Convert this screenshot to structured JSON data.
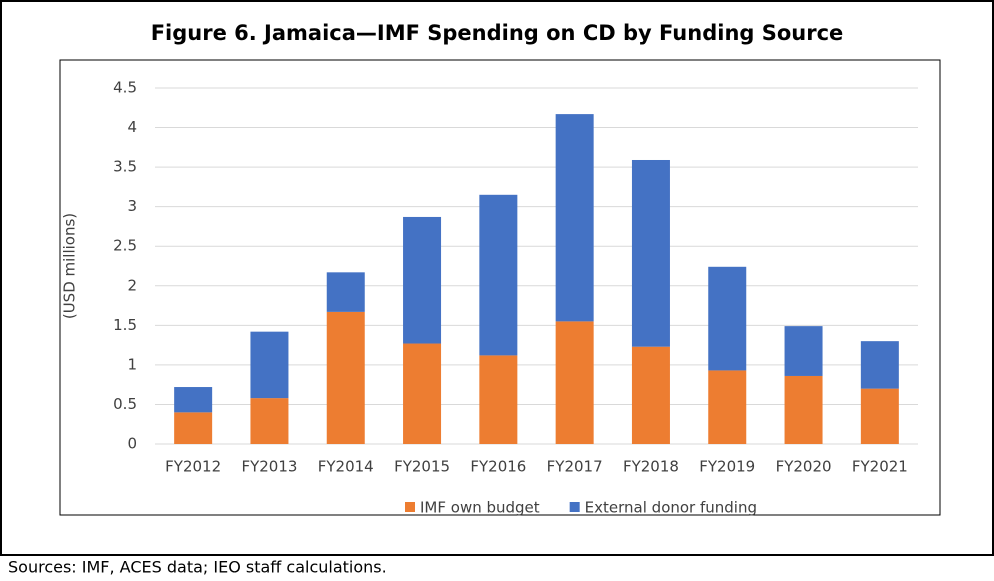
{
  "chart_data": {
    "type": "stacked_bar",
    "title": "Figure 6. Jamaica—IMF Spending on CD by Funding Source",
    "y_label": "(USD millions)",
    "categories": [
      "FY2012",
      "FY2013",
      "FY2014",
      "FY2015",
      "FY2016",
      "FY2017",
      "FY2018",
      "FY2019",
      "FY2020",
      "FY2021"
    ],
    "series": [
      {
        "name": "IMF own budget",
        "color": "#ed7d31",
        "values": [
          0.4,
          0.58,
          1.67,
          1.27,
          1.12,
          1.55,
          1.23,
          0.93,
          0.86,
          0.7
        ]
      },
      {
        "name": "External donor funding",
        "color": "#4472c4",
        "values": [
          0.32,
          0.84,
          0.5,
          1.6,
          2.03,
          2.62,
          2.36,
          1.31,
          0.63,
          0.6
        ]
      }
    ],
    "ylim": [
      0,
      4.5
    ],
    "yticks": [
      0,
      0.5,
      1,
      1.5,
      2,
      2.5,
      3,
      3.5,
      4,
      4.5
    ],
    "grid": true,
    "legend": "bottom",
    "source": "Sources: IMF, ACES data; IEO staff calculations."
  }
}
